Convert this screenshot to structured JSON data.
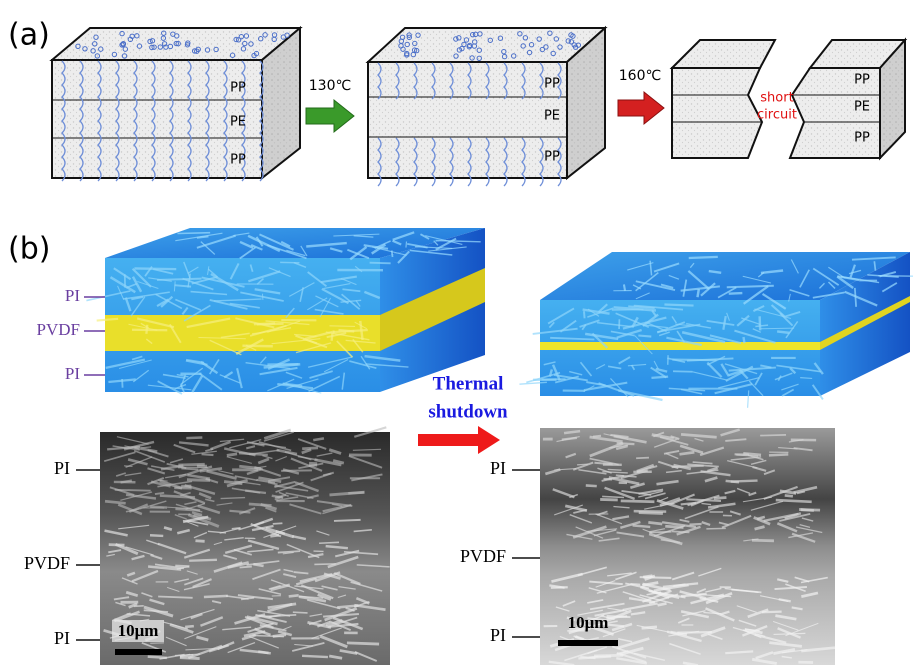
{
  "panel_a": {
    "label": "(a)",
    "stages": [
      {
        "layers": [
          "PP",
          "PE",
          "PP"
        ]
      },
      {
        "layers": [
          "PP",
          "PE",
          "PP"
        ]
      },
      {
        "layers": [
          "PP",
          "PE",
          "PP"
        ],
        "note": [
          "short",
          "circuit"
        ]
      }
    ],
    "arrows": [
      "130℃",
      "160℃"
    ]
  },
  "panel_b": {
    "label": "(b)",
    "schematic_layers": [
      "PI",
      "PVDF",
      "PI"
    ],
    "transition": [
      "Thermal",
      "shutdown"
    ],
    "sem": [
      {
        "layers": [
          "PI",
          "PVDF",
          "PI"
        ],
        "scale_bar": "10μm"
      },
      {
        "layers": [
          "PI",
          "PVDF",
          "PI"
        ],
        "scale_bar": "10μm"
      }
    ]
  }
}
